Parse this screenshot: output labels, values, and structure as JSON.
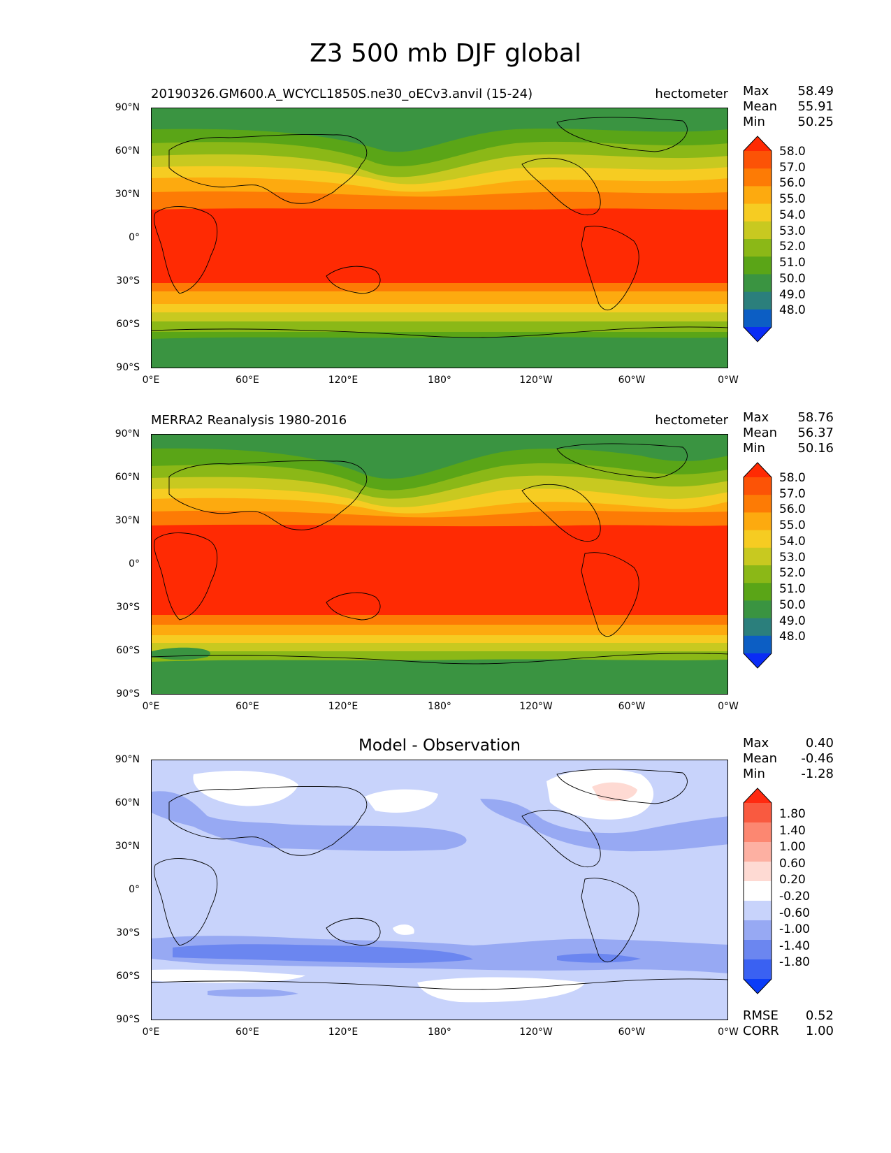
{
  "title": "Z3 500 mb DJF global",
  "axes": {
    "lat_labels": [
      "90°N",
      "60°N",
      "30°N",
      "0°",
      "30°S",
      "60°S",
      "90°S"
    ],
    "lon_labels": [
      "0°E",
      "60°E",
      "120°E",
      "180°",
      "120°W",
      "60°W",
      "0°W"
    ]
  },
  "panels": [
    {
      "title": "20190326.GM600.A_WCYCL1850S.ne30_oECv3.anvil (15-24)",
      "units": "hectometer",
      "stats": [
        {
          "label": "Max",
          "value": "58.49"
        },
        {
          "label": "Mean",
          "value": "55.91"
        },
        {
          "label": "Min",
          "value": "50.25"
        }
      ],
      "colorbar_levels": [
        "58.0",
        "57.0",
        "56.0",
        "55.0",
        "54.0",
        "53.0",
        "52.0",
        "51.0",
        "50.0",
        "49.0",
        "48.0"
      ]
    },
    {
      "title": "MERRA2 Reanalysis 1980-2016",
      "units": "hectometer",
      "stats": [
        {
          "label": "Max",
          "value": "58.76"
        },
        {
          "label": "Mean",
          "value": "56.37"
        },
        {
          "label": "Min",
          "value": "50.16"
        }
      ],
      "colorbar_levels": [
        "58.0",
        "57.0",
        "56.0",
        "55.0",
        "54.0",
        "53.0",
        "52.0",
        "51.0",
        "50.0",
        "49.0",
        "48.0"
      ]
    },
    {
      "title": "Model - Observation",
      "units": "",
      "stats": [
        {
          "label": "Max",
          "value": "0.40"
        },
        {
          "label": "Mean",
          "value": "-0.46"
        },
        {
          "label": "Min",
          "value": "-1.28"
        }
      ],
      "colorbar_levels": [
        "1.80",
        "1.40",
        "1.00",
        "0.60",
        "0.20",
        "-0.20",
        "-0.60",
        "-1.00",
        "-1.40",
        "-1.80"
      ],
      "metrics": [
        {
          "label": "RMSE",
          "value": "0.52"
        },
        {
          "label": "CORR",
          "value": "1.00"
        }
      ]
    }
  ],
  "colors": {
    "abs": [
      "#0a2cf5",
      "#0c5ec4",
      "#2b7f7c",
      "#3a9441",
      "#5aa517",
      "#8bb817",
      "#c8c920",
      "#f6cc22",
      "#fdaa0f",
      "#fd7b05",
      "#fc5306",
      "#ff2a03"
    ],
    "diff": [
      "#0a3cf8",
      "#3a61f2",
      "#6b86f0",
      "#97a9f3",
      "#c8d3fb",
      "#ffffff",
      "#fedad3",
      "#fdb0a2",
      "#fc8771",
      "#f95a40",
      "#ff2a10"
    ]
  }
}
